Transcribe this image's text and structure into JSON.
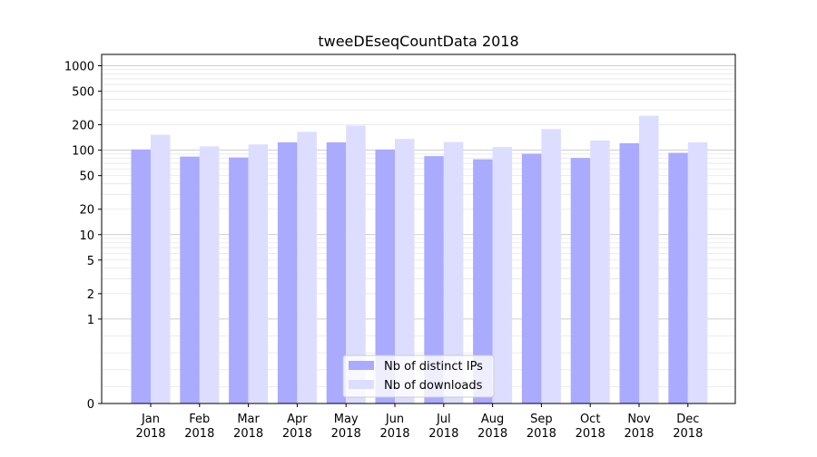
{
  "chart_data": {
    "type": "bar",
    "title": "tweeDEseqCountData 2018",
    "xlabel": "",
    "ylabel": "",
    "y_scale": "symlog",
    "ylim": [
      0,
      1300
    ],
    "y_ticks": [
      0,
      1,
      2,
      5,
      10,
      20,
      50,
      100,
      200,
      500,
      1000
    ],
    "y_tick_labels": [
      "0",
      "1",
      "2",
      "5",
      "10",
      "20",
      "50",
      "100",
      "200",
      "500",
      "1000"
    ],
    "categories": [
      "Jan\n2018",
      "Feb\n2018",
      "Mar\n2018",
      "Apr\n2018",
      "May\n2018",
      "Jun\n2018",
      "Jul\n2018",
      "Aug\n2018",
      "Sep\n2018",
      "Oct\n2018",
      "Nov\n2018",
      "Dec\n2018"
    ],
    "series": [
      {
        "name": "Nb of distinct IPs",
        "color": "#aaaaff",
        "values": [
          102,
          84,
          82,
          124,
          124,
          102,
          85,
          78,
          91,
          81,
          121,
          93
        ]
      },
      {
        "name": "Nb of downloads",
        "color": "#ddddff",
        "values": [
          152,
          111,
          117,
          165,
          196,
          136,
          125,
          109,
          178,
          130,
          256,
          124
        ]
      }
    ],
    "legend_position": "bottom-center",
    "grid": true
  }
}
